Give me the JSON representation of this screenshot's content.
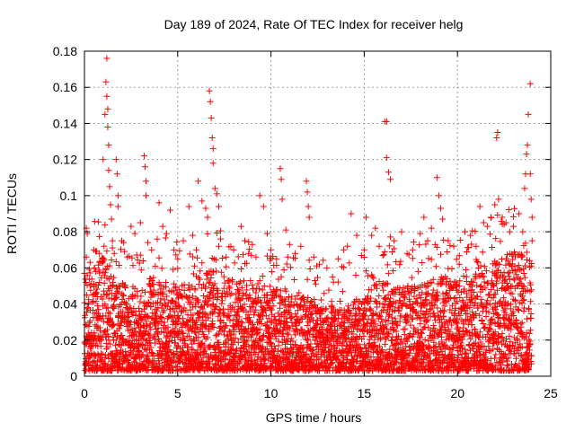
{
  "chart_data": {
    "type": "scatter",
    "title": "Day 189 of 2024, Rate Of TEC Index for receiver helg",
    "xlabel": "GPS time / hours",
    "ylabel": "ROTI / TECUs",
    "xlim": [
      0,
      25
    ],
    "ylim": [
      0,
      0.18
    ],
    "xticks": [
      0,
      5,
      10,
      15,
      20,
      25
    ],
    "yticks": [
      0,
      0.02,
      0.04,
      0.06,
      0.08,
      0.1,
      0.12,
      0.14,
      0.16,
      0.18
    ],
    "xtick_labels": [
      "0",
      "5",
      "10",
      "15",
      "20",
      "25"
    ],
    "ytick_labels": [
      "0",
      "0.02",
      "0.04",
      "0.06",
      "0.08",
      "0.1",
      "0.12",
      "0.14",
      "0.16",
      "0.18"
    ],
    "grid": true,
    "marker": "+",
    "color": "#ff0000",
    "series": [
      {
        "name": "ROTI",
        "points": [
          [
            0.1,
            0.082
          ],
          [
            0.1,
            0.066
          ],
          [
            0.15,
            0.079
          ],
          [
            0.3,
            0.063
          ],
          [
            0.5,
            0.07
          ],
          [
            0.6,
            0.058
          ],
          [
            0.8,
            0.068
          ],
          [
            1.0,
            0.12
          ],
          [
            1.1,
            0.145
          ],
          [
            1.15,
            0.163
          ],
          [
            1.2,
            0.176
          ],
          [
            1.2,
            0.155
          ],
          [
            1.25,
            0.148
          ],
          [
            1.25,
            0.138
          ],
          [
            1.3,
            0.128
          ],
          [
            1.3,
            0.114
          ],
          [
            1.35,
            0.105
          ],
          [
            1.4,
            0.095
          ],
          [
            1.45,
            0.087
          ],
          [
            1.5,
            0.075
          ],
          [
            1.6,
            0.068
          ],
          [
            1.7,
            0.12
          ],
          [
            1.75,
            0.112
          ],
          [
            1.8,
            0.1
          ],
          [
            1.8,
            0.094
          ],
          [
            2.0,
            0.075
          ],
          [
            2.3,
            0.066
          ],
          [
            2.5,
            0.083
          ],
          [
            2.7,
            0.079
          ],
          [
            3.0,
            0.085
          ],
          [
            3.2,
            0.122
          ],
          [
            3.25,
            0.116
          ],
          [
            3.3,
            0.108
          ],
          [
            3.3,
            0.1
          ],
          [
            3.4,
            0.074
          ],
          [
            3.6,
            0.07
          ],
          [
            3.8,
            0.061
          ],
          [
            4.0,
            0.096
          ],
          [
            4.2,
            0.083
          ],
          [
            4.4,
            0.079
          ],
          [
            4.6,
            0.092
          ],
          [
            4.8,
            0.07
          ],
          [
            5.0,
            0.065
          ],
          [
            5.3,
            0.075
          ],
          [
            5.6,
            0.094
          ],
          [
            5.8,
            0.078
          ],
          [
            6.0,
            0.07
          ],
          [
            6.1,
            0.108
          ],
          [
            6.3,
            0.097
          ],
          [
            6.5,
            0.093
          ],
          [
            6.6,
            0.088
          ],
          [
            6.7,
            0.158
          ],
          [
            6.75,
            0.152
          ],
          [
            6.8,
            0.143
          ],
          [
            6.85,
            0.132
          ],
          [
            6.9,
            0.126
          ],
          [
            6.9,
            0.118
          ],
          [
            7.0,
            0.104
          ],
          [
            7.1,
            0.101
          ],
          [
            7.2,
            0.094
          ],
          [
            7.3,
            0.076
          ],
          [
            7.6,
            0.066
          ],
          [
            8.0,
            0.07
          ],
          [
            8.4,
            0.083
          ],
          [
            8.6,
            0.075
          ],
          [
            8.8,
            0.068
          ],
          [
            9.0,
            0.073
          ],
          [
            9.2,
            0.066
          ],
          [
            9.4,
            0.1
          ],
          [
            9.6,
            0.094
          ],
          [
            9.8,
            0.079
          ],
          [
            10.0,
            0.07
          ],
          [
            10.3,
            0.065
          ],
          [
            10.5,
            0.115
          ],
          [
            10.55,
            0.109
          ],
          [
            10.6,
            0.098
          ],
          [
            10.8,
            0.081
          ],
          [
            11.0,
            0.073
          ],
          [
            11.3,
            0.068
          ],
          [
            11.6,
            0.072
          ],
          [
            11.9,
            0.108
          ],
          [
            11.95,
            0.102
          ],
          [
            12.0,
            0.094
          ],
          [
            12.05,
            0.088
          ],
          [
            12.3,
            0.066
          ],
          [
            12.6,
            0.062
          ],
          [
            13.0,
            0.06
          ],
          [
            13.3,
            0.055
          ],
          [
            13.6,
            0.065
          ],
          [
            13.9,
            0.07
          ],
          [
            14.1,
            0.072
          ],
          [
            14.3,
            0.09
          ],
          [
            14.6,
            0.078
          ],
          [
            15.0,
            0.07
          ],
          [
            15.1,
            0.088
          ],
          [
            15.4,
            0.078
          ],
          [
            15.6,
            0.082
          ],
          [
            15.8,
            0.072
          ],
          [
            16.1,
            0.141
          ],
          [
            16.2,
            0.141
          ],
          [
            16.2,
            0.121
          ],
          [
            16.3,
            0.113
          ],
          [
            16.4,
            0.109
          ],
          [
            16.6,
            0.075
          ],
          [
            17.0,
            0.08
          ],
          [
            17.3,
            0.068
          ],
          [
            17.6,
            0.07
          ],
          [
            18.0,
            0.079
          ],
          [
            18.2,
            0.088
          ],
          [
            18.4,
            0.075
          ],
          [
            18.6,
            0.082
          ],
          [
            18.9,
            0.11
          ],
          [
            19.0,
            0.1
          ],
          [
            19.1,
            0.093
          ],
          [
            19.2,
            0.087
          ],
          [
            19.5,
            0.075
          ],
          [
            19.8,
            0.072
          ],
          [
            20.1,
            0.062
          ],
          [
            20.4,
            0.08
          ],
          [
            20.7,
            0.078
          ],
          [
            21.0,
            0.072
          ],
          [
            21.2,
            0.094
          ],
          [
            21.4,
            0.085
          ],
          [
            21.6,
            0.083
          ],
          [
            21.8,
            0.088
          ],
          [
            22.0,
            0.095
          ],
          [
            22.1,
            0.132
          ],
          [
            22.15,
            0.135
          ],
          [
            22.2,
            0.098
          ],
          [
            22.4,
            0.088
          ],
          [
            22.6,
            0.085
          ],
          [
            22.8,
            0.08
          ],
          [
            23.0,
            0.083
          ],
          [
            23.3,
            0.09
          ],
          [
            23.5,
            0.08
          ],
          [
            23.6,
            0.104
          ],
          [
            23.65,
            0.112
          ],
          [
            23.7,
            0.123
          ],
          [
            23.75,
            0.128
          ],
          [
            23.8,
            0.145
          ],
          [
            23.9,
            0.162
          ],
          [
            23.9,
            0.112
          ],
          [
            23.95,
            0.098
          ],
          [
            24.0,
            0.088
          ],
          [
            24.0,
            0.075
          ]
        ],
        "background": {
          "description_free": true,
          "x_start": 0,
          "x_end": 24,
          "x_step": 0.05,
          "band_low": 0.003,
          "band_high_profile": [
            [
              0,
              0.05
            ],
            [
              1,
              0.07
            ],
            [
              1.5,
              0.055
            ],
            [
              3,
              0.05
            ],
            [
              4,
              0.055
            ],
            [
              5,
              0.05
            ],
            [
              6,
              0.055
            ],
            [
              7,
              0.06
            ],
            [
              8,
              0.055
            ],
            [
              9,
              0.05
            ],
            [
              10,
              0.05
            ],
            [
              11,
              0.045
            ],
            [
              12,
              0.045
            ],
            [
              13,
              0.04
            ],
            [
              14,
              0.04
            ],
            [
              15,
              0.045
            ],
            [
              16,
              0.055
            ],
            [
              17,
              0.05
            ],
            [
              18,
              0.05
            ],
            [
              19,
              0.055
            ],
            [
              20,
              0.055
            ],
            [
              21,
              0.06
            ],
            [
              22,
              0.065
            ],
            [
              23,
              0.07
            ],
            [
              24,
              0.07
            ]
          ]
        }
      }
    ]
  }
}
